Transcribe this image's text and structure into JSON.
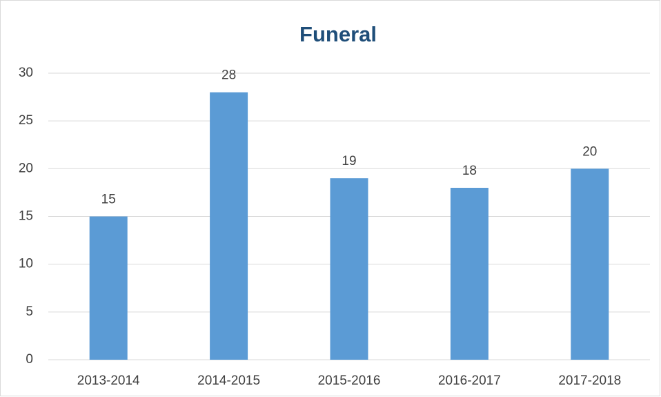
{
  "chart_data": {
    "type": "bar",
    "title": "Funeral",
    "categories": [
      "2013-2014",
      "2014-2015",
      "2015-2016",
      "2016-2017",
      "2017-2018"
    ],
    "values": [
      15,
      28,
      19,
      18,
      20
    ],
    "color": "#5b9bd5",
    "ylim": [
      0,
      30
    ],
    "yticks": [
      0,
      5,
      10,
      15,
      20,
      25,
      30
    ],
    "grid": true
  }
}
